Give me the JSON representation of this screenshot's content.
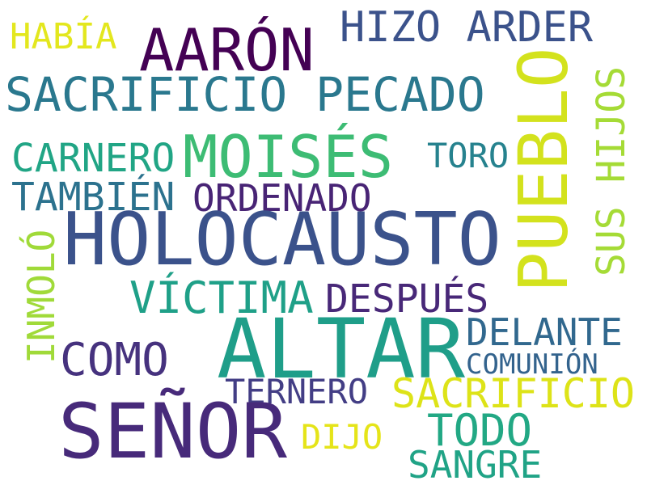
{
  "words": {
    "habia": {
      "text": "HABÍA",
      "color": "#e3e71e"
    },
    "aaron": {
      "text": "AARÓN",
      "color": "#440154"
    },
    "hizo_arder": {
      "text": "HIZO ARDER",
      "color": "#3b528b"
    },
    "sacrificio_pecado": {
      "text": "SACRIFICIO PECADO",
      "color": "#2a788e"
    },
    "pueblo": {
      "text": "PUEBLO",
      "color": "#d3e21d"
    },
    "carnero": {
      "text": "CARNERO",
      "color": "#21a585"
    },
    "moises": {
      "text": "MOISÉS",
      "color": "#3dbc74"
    },
    "toro": {
      "text": "TORO",
      "color": "#26828e"
    },
    "sus_hijos": {
      "text": "SUS HIJOS",
      "color": "#a5db36"
    },
    "tambien": {
      "text": "TAMBIÉN",
      "color": "#2c728e"
    },
    "ordenado": {
      "text": "ORDENADO",
      "color": "#482475"
    },
    "holocausto": {
      "text": "HOLOCAUSTO",
      "color": "#3b528b"
    },
    "inmolo": {
      "text": "INMOLÓ",
      "color": "#a0da39"
    },
    "victima": {
      "text": "VÍCTIMA",
      "color": "#1fa088"
    },
    "despues": {
      "text": "DESPUÉS",
      "color": "#482878"
    },
    "altar": {
      "text": "ALTAR",
      "color": "#1f9e89"
    },
    "delante": {
      "text": "DELANTE",
      "color": "#31688e"
    },
    "como": {
      "text": "COMO",
      "color": "#46327e"
    },
    "comunion": {
      "text": "COMUNIÓN",
      "color": "#33638d"
    },
    "ternero": {
      "text": "TERNERO",
      "color": "#433e85"
    },
    "sacrificio": {
      "text": "SACRIFICIO",
      "color": "#dde318"
    },
    "senor": {
      "text": "SEÑOR",
      "color": "#472a7a"
    },
    "dijo": {
      "text": "DIJO",
      "color": "#e5e419"
    },
    "todo": {
      "text": "TODO",
      "color": "#22a884"
    },
    "sangre": {
      "text": "SANGRE",
      "color": "#20a386"
    }
  }
}
